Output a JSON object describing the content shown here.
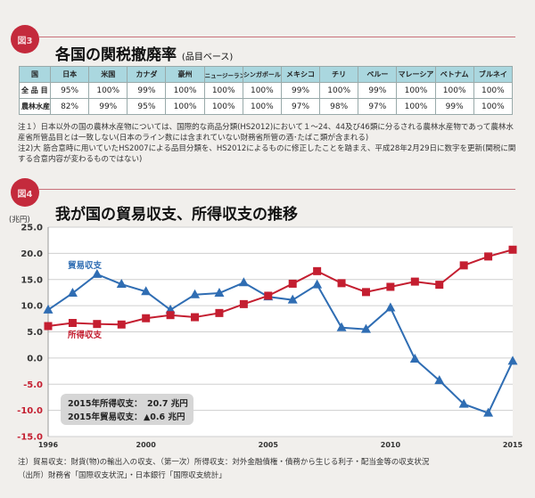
{
  "fig3": {
    "badge": "図3",
    "title": "各国の関税撤廃率",
    "subtitle": "(品目ベース)",
    "table": {
      "headers": [
        "国",
        "日本",
        "米国",
        "カナダ",
        "豪州",
        "ニュージーランド",
        "シンガポール",
        "メキシコ",
        "チリ",
        "ペルー",
        "マレーシア",
        "ベトナム",
        "ブルネイ"
      ],
      "rows": [
        {
          "label": "全 品 目",
          "values": [
            "95%",
            "100%",
            "99%",
            "100%",
            "100%",
            "100%",
            "99%",
            "100%",
            "99%",
            "100%",
            "100%",
            "100%"
          ]
        },
        {
          "label": "農林水産物",
          "values": [
            "82%",
            "99%",
            "95%",
            "100%",
            "100%",
            "100%",
            "97%",
            "98%",
            "97%",
            "100%",
            "99%",
            "100%"
          ]
        }
      ]
    },
    "notes": [
      "注１）日本以外の国の農林水産物については、国際的な商品分類(HS2012)において１～24、44及び46類に分るされる農林水産物であって農林水産省所管品目とは一致しない(日本のライン数には含まれていない財務省所管の酒･たばこ類が含まれる)",
      "注2)大 筋合意時に用いていたHS2007による品目分類を、HS2012によるものに修正したことを踏まえ、平成28年2月29日に数字を更新(関税に関する合意内容が変わるものではない)"
    ]
  },
  "fig4": {
    "badge": "図4",
    "title": "我が国の貿易収支、所得収支の推移",
    "notes": [
      "注）貿易収支：財貨(物)の輸出入の収支、（第一次）所得収支：対外金融債権・債務から生じる利子・配当金等の収支状況",
      "（出所）財務省「国際収支状況」・日本銀行「国際収支統計」"
    ]
  },
  "chart_data": {
    "type": "line",
    "ylabel": "(兆円)",
    "ylim": [
      -15,
      25
    ],
    "yticks": [
      "25.0",
      "20.0",
      "15.0",
      "10.0",
      "5.0",
      "0.0",
      "-5.0",
      "-10.0",
      "-15.0"
    ],
    "xticks": [
      "1996",
      "2000",
      "2005",
      "2010",
      "2015"
    ],
    "grid": true,
    "x": [
      1996,
      1997,
      1998,
      1999,
      2000,
      2001,
      2002,
      2003,
      2004,
      2005,
      2006,
      2007,
      2008,
      2009,
      2010,
      2011,
      2012,
      2013,
      2014,
      2015
    ],
    "series": [
      {
        "name": "貿易収支",
        "color": "#2f6db3",
        "marker": "triangle",
        "values": [
          9.2,
          12.4,
          16.0,
          14.1,
          12.7,
          9.2,
          12.1,
          12.4,
          14.4,
          11.7,
          11.1,
          14.0,
          5.8,
          5.5,
          9.6,
          -0.2,
          -4.3,
          -8.8,
          -10.5,
          -0.6
        ]
      },
      {
        "name": "所得収支",
        "color": "#c41e30",
        "marker": "square",
        "values": [
          6.1,
          6.7,
          6.5,
          6.4,
          7.6,
          8.2,
          7.8,
          8.6,
          10.3,
          11.9,
          14.2,
          16.6,
          14.3,
          12.6,
          13.6,
          14.6,
          14.0,
          17.7,
          19.4,
          20.7
        ]
      }
    ],
    "annotation": {
      "line1_label": "2015年所得収支：",
      "line1_value": "20.7 兆円",
      "line2_label": "2015年貿易収支：",
      "line2_value": "▲0.6 兆円"
    }
  }
}
